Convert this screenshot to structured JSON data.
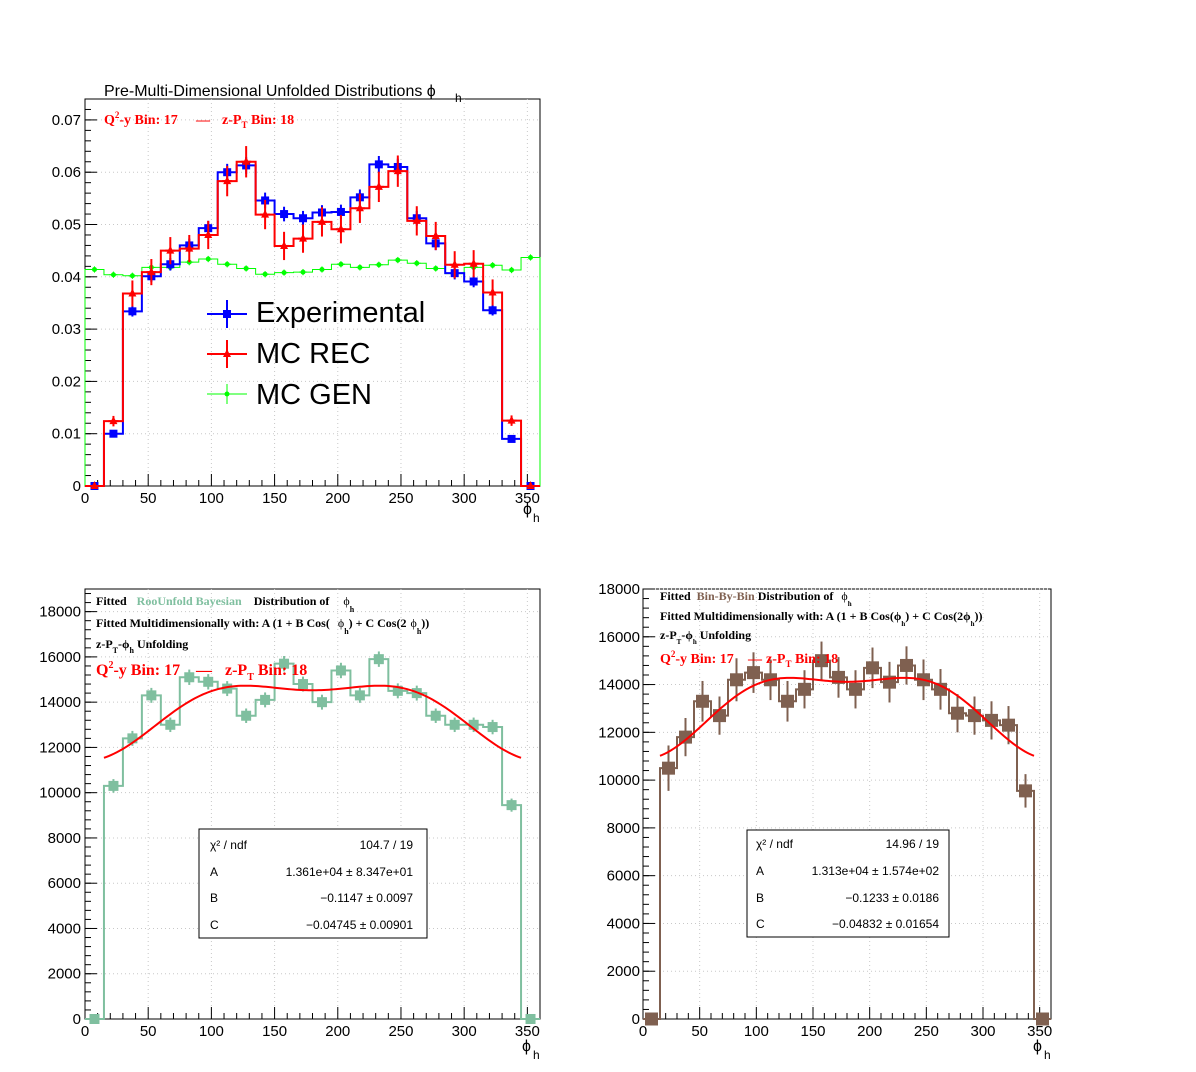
{
  "chart_data": [
    {
      "id": "pre",
      "type": "line",
      "title": "Pre-Multi-Dimensional Unfolded Distributions ϕ",
      "title_sub": "h",
      "bin_label_q2y": "Q",
      "bin_label_q2y_rest": "-y Bin: 17",
      "bin_label_zpt": "z-P",
      "bin_label_zpt_rest": " Bin: 18",
      "bin_sep": "—",
      "xlabel": "ϕ",
      "xlabel_sub": "h",
      "xlim": [
        0,
        360
      ],
      "ylim": [
        0,
        0.074
      ],
      "xticks": [
        "0",
        "50",
        "100",
        "150",
        "200",
        "250",
        "300",
        "350"
      ],
      "yticks": [
        "0",
        "0.01",
        "0.02",
        "0.03",
        "0.04",
        "0.05",
        "0.06",
        "0.07"
      ],
      "bin_edges": [
        0,
        15,
        30,
        45,
        60,
        75,
        90,
        105,
        120,
        135,
        150,
        165,
        180,
        195,
        210,
        225,
        240,
        255,
        270,
        285,
        300,
        315,
        330,
        345,
        360
      ],
      "legend": [
        "Experimental",
        "MC REC",
        "MC GEN"
      ],
      "colors": {
        "Experimental": "#0000ff",
        "MC REC": "#ff0000",
        "MC GEN": "#00ff00"
      },
      "series": [
        {
          "name": "Experimental",
          "values": [
            0,
            0.01,
            0.0334,
            0.0401,
            0.0424,
            0.046,
            0.0493,
            0.06,
            0.0613,
            0.0546,
            0.052,
            0.0512,
            0.0523,
            0.0524,
            0.0552,
            0.0615,
            0.061,
            0.0512,
            0.0464,
            0.0407,
            0.0391,
            0.0336,
            0.009,
            0
          ],
          "err": [
            0,
            0.0006,
            0.001,
            0.0011,
            0.0012,
            0.0013,
            0.0014,
            0.0016,
            0.0016,
            0.0015,
            0.0014,
            0.0014,
            0.0014,
            0.0014,
            0.0015,
            0.0016,
            0.0016,
            0.0014,
            0.0013,
            0.0012,
            0.0011,
            0.001,
            0.0006,
            0
          ]
        },
        {
          "name": "MC REC",
          "values": [
            0,
            0.0124,
            0.0368,
            0.0409,
            0.045,
            0.0454,
            0.048,
            0.0583,
            0.062,
            0.0519,
            0.0459,
            0.0473,
            0.0505,
            0.0491,
            0.0531,
            0.0572,
            0.0602,
            0.0507,
            0.0478,
            0.0423,
            0.0425,
            0.037,
            0.0125,
            0
          ],
          "err": [
            0,
            0.001,
            0.0025,
            0.0025,
            0.0026,
            0.0026,
            0.0027,
            0.0029,
            0.003,
            0.0028,
            0.0027,
            0.0027,
            0.0028,
            0.0027,
            0.0028,
            0.0029,
            0.003,
            0.0028,
            0.0027,
            0.0026,
            0.0026,
            0.0025,
            0.001,
            0
          ]
        },
        {
          "name": "MC GEN",
          "values": [
            0.0414,
            0.0404,
            0.0402,
            0.0418,
            0.0418,
            0.0428,
            0.0434,
            0.0424,
            0.0416,
            0.0405,
            0.0408,
            0.0409,
            0.0414,
            0.0424,
            0.0418,
            0.0423,
            0.0432,
            0.0426,
            0.0416,
            0.0406,
            0.0418,
            0.0422,
            0.0413,
            0.0437
          ],
          "err": [
            0.0006,
            0.0006,
            0.0006,
            0.0006,
            0.0006,
            0.0006,
            0.0006,
            0.0006,
            0.0006,
            0.0006,
            0.0006,
            0.0006,
            0.0006,
            0.0006,
            0.0006,
            0.0006,
            0.0006,
            0.0006,
            0.0006,
            0.0006,
            0.0006,
            0.0006,
            0.0006,
            0.0006
          ]
        }
      ]
    },
    {
      "id": "bayes",
      "type": "line",
      "title_parts": [
        "Fitted",
        "RooUnfold Bayesian",
        "Distribution of",
        "ϕ",
        "h"
      ],
      "title_line2": "Fitted Multidimensionally with: A (1 + B Cos(",
      "title_line2b": "ϕ",
      "title_line2c": "h",
      "title_line2d": ") + C Cos(2",
      "title_line2e": "ϕ",
      "title_line2f": "h",
      "title_line2g": "))",
      "title_line3": "z-P",
      "title_line3b": "T",
      "title_line3c": "-ϕ",
      "title_line3d": "h",
      "title_line3e": " Unfolding",
      "bin_label_q2y": "Q",
      "bin_label_q2y_rest": "-y Bin: 17",
      "bin_label_zpt": "z-P",
      "bin_label_zpt_rest": " Bin: 18",
      "bin_sep": "—",
      "xlabel": "ϕ",
      "xlabel_sub": "h",
      "xlim": [
        0,
        360
      ],
      "ylim": [
        0,
        19000
      ],
      "xticks": [
        "0",
        "50",
        "100",
        "150",
        "200",
        "250",
        "300",
        "350"
      ],
      "yticks": [
        "0",
        "2000",
        "4000",
        "6000",
        "8000",
        "10000",
        "12000",
        "14000",
        "16000",
        "18000"
      ],
      "bin_edges": [
        0,
        15,
        30,
        45,
        60,
        75,
        90,
        105,
        120,
        135,
        150,
        165,
        180,
        195,
        210,
        225,
        240,
        255,
        270,
        285,
        300,
        315,
        330,
        345,
        360
      ],
      "colors": {
        "hist": "#7fbf9f",
        "fit": "#ff0000"
      },
      "series": [
        {
          "name": "",
          "values": [
            0,
            10300,
            12400,
            14300,
            13000,
            15100,
            14900,
            14600,
            13400,
            14100,
            15700,
            14800,
            14000,
            15400,
            14300,
            15900,
            14500,
            14400,
            13400,
            13000,
            13000,
            12900,
            9450,
            0
          ],
          "err": [
            0,
            300,
            330,
            330,
            320,
            340,
            340,
            330,
            320,
            330,
            340,
            330,
            330,
            340,
            330,
            340,
            330,
            330,
            320,
            320,
            320,
            320,
            290,
            0
          ]
        }
      ],
      "fit": {
        "A": 13610,
        "B": -0.1147,
        "C": -0.04745,
        "x_range": [
          15,
          345
        ]
      },
      "stats": {
        "chi2_label": "χ² / ndf",
        "chi2": "104.7 / 19",
        "rows": [
          {
            "k": "A",
            "v": "1.361e+04 ± 8.347e+01"
          },
          {
            "k": "B",
            "v": "−0.1147 ± 0.0097"
          },
          {
            "k": "C",
            "v": "−0.04745 ± 0.00901"
          }
        ]
      }
    },
    {
      "id": "binbybin",
      "type": "line",
      "title_parts": [
        "Fitted",
        "Bin-By-Bin",
        "Distribution of",
        "ϕ",
        "h"
      ],
      "title_line2": "Fitted Multidimensionally with: A (1 + B Cos(ϕ",
      "title_line2b": "h",
      "title_line2c": ") + C Cos(2ϕ",
      "title_line2d": "h",
      "title_line2e": "))",
      "title_line3": "z-P",
      "title_line3b": "T",
      "title_line3c": "-ϕ",
      "title_line3d": "h",
      "title_line3e": " Unfolding",
      "bin_label_q2y": "Q",
      "bin_label_q2y_rest": "-y Bin: 17",
      "bin_label_zpt": "z-P",
      "bin_label_zpt_rest": " Bin: 18",
      "bin_sep": "—",
      "xlabel": "ϕ",
      "xlabel_sub": "h",
      "xlim": [
        0,
        360
      ],
      "ylim": [
        0,
        18000
      ],
      "xticks": [
        "0",
        "50",
        "100",
        "150",
        "200",
        "250",
        "300",
        "350"
      ],
      "yticks": [
        "0",
        "2000",
        "4000",
        "6000",
        "8000",
        "10000",
        "12000",
        "14000",
        "16000",
        "18000"
      ],
      "bin_edges": [
        0,
        15,
        30,
        45,
        60,
        75,
        90,
        105,
        120,
        135,
        150,
        165,
        180,
        195,
        210,
        225,
        240,
        255,
        270,
        285,
        300,
        315,
        330,
        345,
        360
      ],
      "colors": {
        "hist": "#7f6050",
        "fit": "#ff0000"
      },
      "series": [
        {
          "name": "",
          "values": [
            0,
            10500,
            11800,
            13300,
            12700,
            14200,
            14500,
            14200,
            13300,
            13800,
            15000,
            14300,
            13800,
            14700,
            14100,
            14800,
            14200,
            13800,
            12800,
            12700,
            12500,
            12300,
            9550,
            0
          ],
          "err": [
            0,
            950,
            800,
            850,
            800,
            900,
            850,
            850,
            850,
            800,
            800,
            850,
            800,
            850,
            850,
            800,
            850,
            850,
            800,
            800,
            800,
            800,
            700,
            0
          ]
        }
      ],
      "fit": {
        "A": 13130,
        "B": -0.1233,
        "C": -0.04832,
        "x_range": [
          15,
          345
        ]
      },
      "stats": {
        "chi2_label": "χ² / ndf",
        "chi2": "14.96 / 19",
        "rows": [
          {
            "k": "A",
            "v": "1.313e+04 ± 1.574e+02"
          },
          {
            "k": "B",
            "v": "−0.1233 ± 0.0186"
          },
          {
            "k": "C",
            "v": "−0.04832 ± 0.01654"
          }
        ]
      }
    }
  ]
}
